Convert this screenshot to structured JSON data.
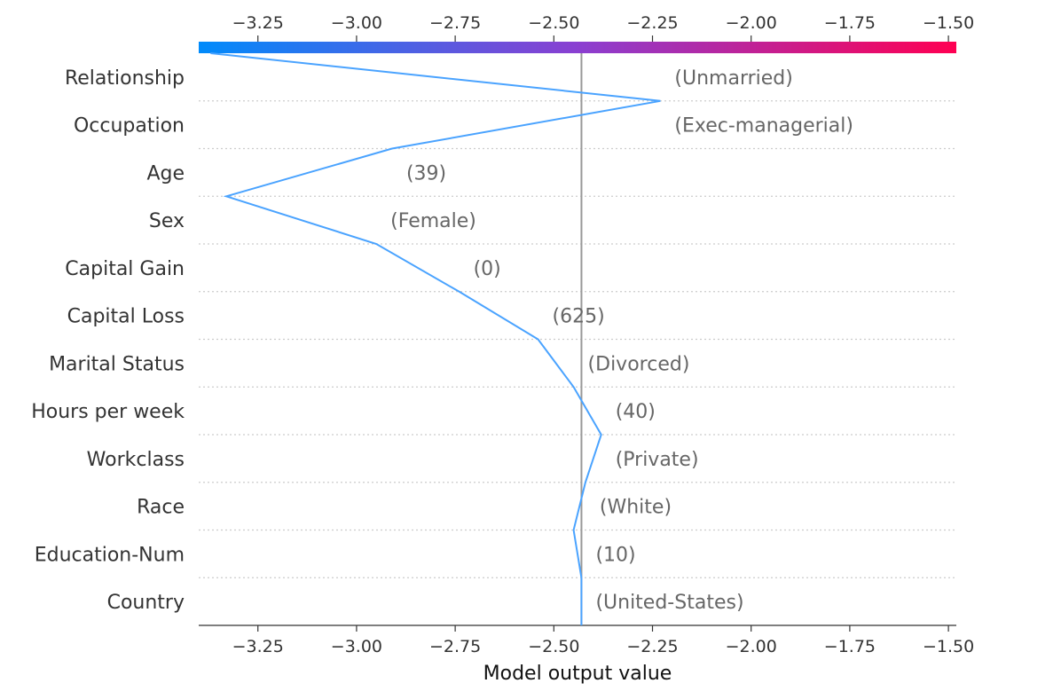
{
  "chart_data": {
    "type": "line",
    "title": "",
    "xlabel": "Model output value",
    "ylabel": "",
    "xlim": [
      -3.4,
      -1.48
    ],
    "xticks": [
      -3.25,
      -3.0,
      -2.75,
      -2.5,
      -2.25,
      -2.0,
      -1.75,
      -1.5
    ],
    "xtick_labels": [
      "−3.25",
      "−3.00",
      "−2.75",
      "−2.50",
      "−2.25",
      "−2.00",
      "−1.75",
      "−1.50"
    ],
    "base_value": -2.43,
    "colorbar": {
      "start_color": "#008bfb",
      "mid_color": "#8a3fd1",
      "end_color": "#ff0052"
    },
    "line_color": "#4aa3ff",
    "grid": "dotted-horizontal",
    "features": [
      {
        "name": "Relationship",
        "value": "(Unmarried)"
      },
      {
        "name": "Occupation",
        "value": "(Exec-managerial)"
      },
      {
        "name": "Age",
        "value": "(39)"
      },
      {
        "name": "Sex",
        "value": "(Female)"
      },
      {
        "name": "Capital Gain",
        "value": "(0)"
      },
      {
        "name": "Capital Loss",
        "value": "(625)"
      },
      {
        "name": "Marital Status",
        "value": "(Divorced)"
      },
      {
        "name": "Hours per week",
        "value": "(40)"
      },
      {
        "name": "Workclass",
        "value": "(Private)"
      },
      {
        "name": "Race",
        "value": "(White)"
      },
      {
        "name": "Education-Num",
        "value": "(10)"
      },
      {
        "name": "Country",
        "value": "(United-States)"
      }
    ],
    "path": [
      -3.37,
      -2.23,
      -2.91,
      -3.33,
      -2.95,
      -2.74,
      -2.54,
      -2.45,
      -2.38,
      -2.42,
      -2.45,
      -2.43,
      -2.43
    ]
  }
}
